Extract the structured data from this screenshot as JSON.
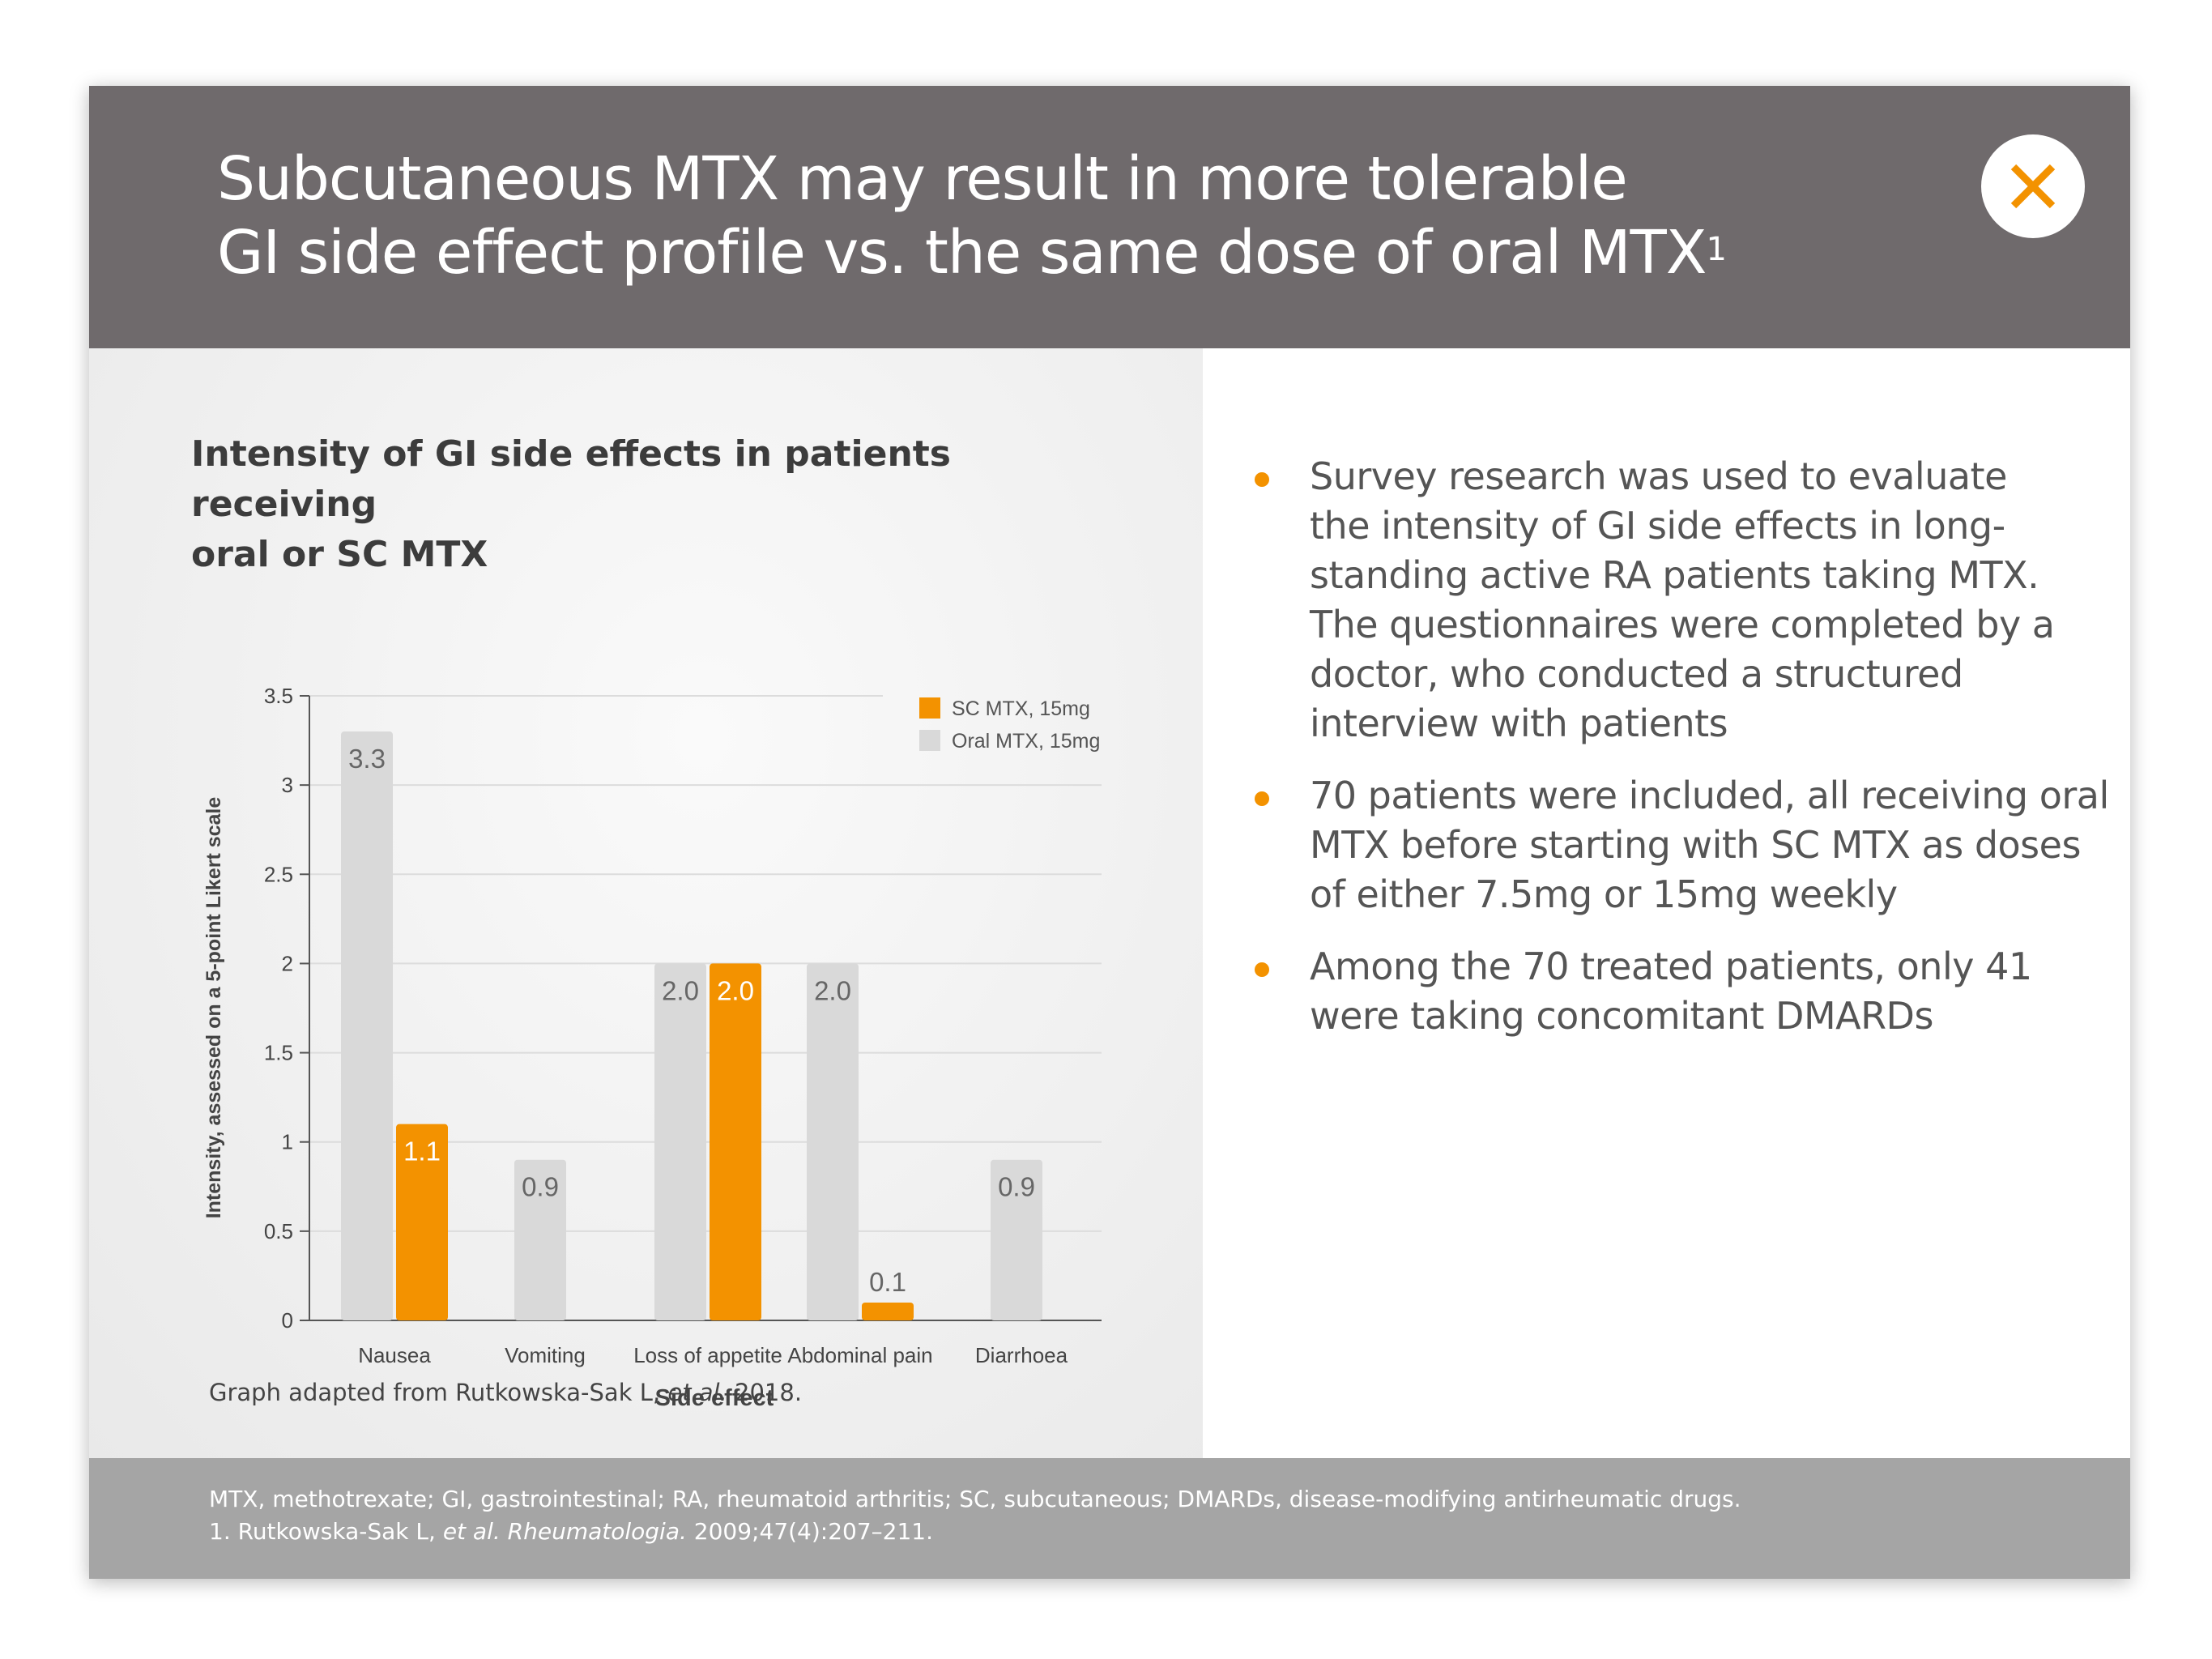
{
  "header": {
    "title_line1": "Subcutaneous MTX may result in more tolerable",
    "title_line2": "GI side effect profile vs. the same dose of oral MTX",
    "title_superscript": "1",
    "close_icon": "close-x-icon"
  },
  "chart_source": {
    "prefix": "Graph adapted from Rutkowska-Sak L, ",
    "italic": "et al.",
    "suffix": " 2018."
  },
  "bullets": [
    {
      "lines": [
        "Survey research was used to evaluate",
        "the intensity of GI side effects in long-",
        "standing active RA patients taking MTX.",
        "The questionnaires were completed by a",
        "doctor, who conducted a structured",
        "interview with patients"
      ]
    },
    {
      "lines": [
        "70 patients were included, all receiving oral",
        "MTX before starting with SC MTX as doses",
        "of either 7.5mg or 15mg weekly"
      ]
    },
    {
      "lines": [
        "Among the 70 treated patients, only 41",
        "were taking concomitant DMARDs"
      ]
    }
  ],
  "footer": {
    "abbreviations": "MTX, methotrexate; GI, gastrointestinal; RA, rheumatoid arthritis; SC, subcutaneous; DMARDs, disease-modifying antirheumatic drugs.",
    "ref_prefix": "1. Rutkowska-Sak L, ",
    "ref_italic": "et al. Rheumatologia.",
    "ref_suffix": " 2009;47(4):207–211."
  },
  "colors": {
    "accent": "#f39200",
    "oral_bar": "#d9d9d9",
    "header_bg": "#6f6a6c",
    "footer_bg": "#a5a5a5"
  },
  "chart_data": {
    "type": "bar",
    "title": "Intensity of GI side effects in patients receiving oral or SC MTX",
    "title_lines": [
      "Intensity of GI side effects in patients receiving",
      "oral or SC MTX"
    ],
    "xlabel": "Side effect",
    "ylabel": "Intensity, assessed on a 5-point Likert scale",
    "categories": [
      "Nausea",
      "Vomiting",
      "Loss of appetite",
      "Abdominal pain",
      "Diarrhoea"
    ],
    "ylim": [
      0,
      3.5
    ],
    "yticks": [
      0,
      0.5,
      1,
      1.5,
      2,
      2.5,
      3,
      3.5
    ],
    "ytick_labels": [
      "0",
      "0.5",
      "1",
      "1.5",
      "2",
      "2.5",
      "3",
      "3.5"
    ],
    "grid": true,
    "legend_position": "top-right",
    "series": [
      {
        "name": "Oral MTX, 15mg",
        "color": "#d9d9d9",
        "label_color": "#666666",
        "values": [
          3.3,
          0.9,
          2.0,
          2.0,
          0.9
        ],
        "labels": [
          "3.3",
          "0.9",
          "2.0",
          "2.0",
          "0.9"
        ]
      },
      {
        "name": "SC MTX, 15mg",
        "color": "#f39200",
        "label_color": "#ffffff",
        "values": [
          1.1,
          null,
          2.0,
          0.1,
          null
        ],
        "labels": [
          "1.1",
          "",
          "2.0",
          "0.1",
          ""
        ]
      }
    ],
    "legend_order": [
      "SC MTX, 15mg",
      "Oral MTX, 15mg"
    ]
  }
}
